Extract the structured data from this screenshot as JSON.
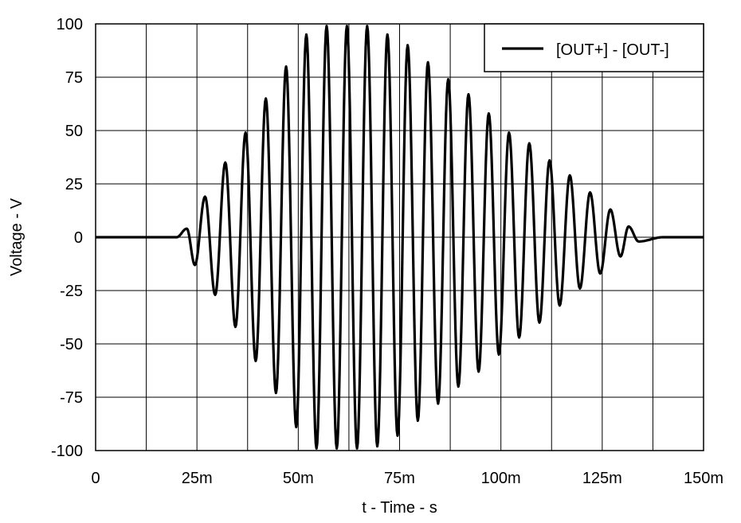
{
  "chart_data": {
    "type": "line",
    "title": "",
    "xlabel": "t - Time - s",
    "ylabel": "Voltage - V",
    "xlim": [
      0,
      0.15
    ],
    "ylim": [
      -100,
      100
    ],
    "x_ticks": [
      0,
      0.025,
      0.05,
      0.075,
      0.1,
      0.125,
      0.15
    ],
    "x_tick_labels": [
      "0",
      "25m",
      "50m",
      "75m",
      "100m",
      "125m",
      "150m"
    ],
    "y_ticks": [
      -100,
      -75,
      -50,
      -25,
      0,
      25,
      50,
      75,
      100
    ],
    "y_tick_labels": [
      "-100",
      "-75",
      "-50",
      "-25",
      "0",
      "25",
      "50",
      "75",
      "100"
    ],
    "grid": true,
    "legend_position": "top-right",
    "colors": {
      "line": "#000000",
      "grid": "#000000",
      "background": "#ffffff"
    },
    "series": [
      {
        "name": "[OUT+] - [OUT-]",
        "x": [
          0,
          0.012,
          0.02,
          0.0225,
          0.0245,
          0.027,
          0.0295,
          0.032,
          0.0345,
          0.037,
          0.0395,
          0.042,
          0.0445,
          0.047,
          0.0495,
          0.052,
          0.0545,
          0.057,
          0.0595,
          0.062,
          0.0645,
          0.067,
          0.0695,
          0.072,
          0.0745,
          0.077,
          0.0795,
          0.082,
          0.0845,
          0.087,
          0.0895,
          0.092,
          0.0945,
          0.097,
          0.0995,
          0.102,
          0.1045,
          0.107,
          0.1095,
          0.112,
          0.1145,
          0.117,
          0.1195,
          0.122,
          0.1245,
          0.127,
          0.1295,
          0.1315,
          0.134,
          0.14,
          0.15
        ],
        "y": [
          0,
          0,
          0,
          4,
          -13,
          19,
          -27,
          35,
          -42,
          49,
          -58,
          65,
          -73,
          80,
          -89,
          95,
          -99,
          99,
          -99,
          99,
          -99,
          99,
          -98,
          95,
          -93,
          90,
          -86,
          82,
          -78,
          74,
          -70,
          67,
          -63,
          58,
          -55,
          49,
          -47,
          44,
          -40,
          36,
          -32,
          29,
          -24,
          21,
          -17,
          13,
          -9,
          5,
          -2,
          0,
          0
        ]
      }
    ]
  }
}
